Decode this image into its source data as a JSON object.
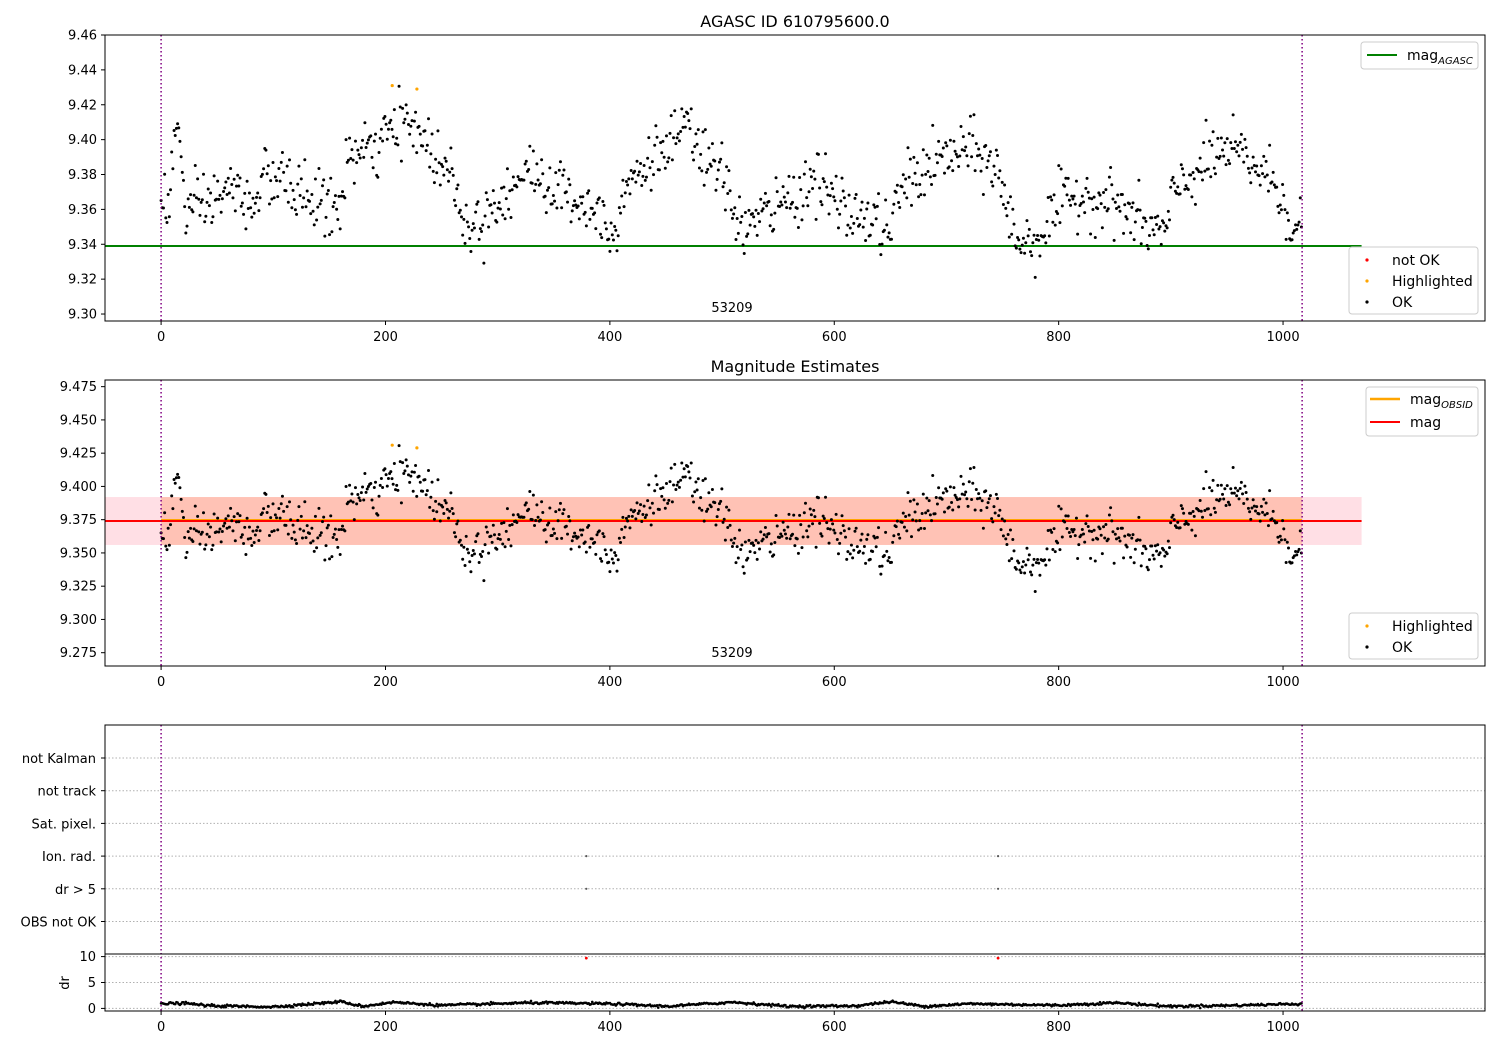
{
  "figure": {
    "panel1_title": "AGASC ID 610795600.0",
    "panel2_title": "Magnitude Estimates",
    "obsid_label": "53209"
  },
  "legends": {
    "panel1_line": {
      "main": "mag",
      "sub": "AGASC"
    },
    "panel1_points": [
      "not OK",
      "Highlighted",
      "OK"
    ],
    "panel2_line1": {
      "main": "mag",
      "sub": "OBSID"
    },
    "panel2_line2": "mag",
    "panel2_points": [
      "Highlighted",
      "OK"
    ]
  },
  "colors": {
    "ok": "#000000",
    "highlighted": "#ffa500",
    "not_ok": "#ff0000",
    "mag_agasc": "#008000",
    "mag_obsid": "#ffa500",
    "mag": "#ff0000",
    "band_pink": "#ffc0cb",
    "band_orange": "#ffa07a",
    "obs_boundary": "#800080",
    "grid": "#b0b0b0"
  },
  "chart_data": [
    {
      "type": "scatter",
      "title": "AGASC ID 610795600.0",
      "xlim": [
        -50,
        1180
      ],
      "ylim": [
        9.296,
        9.46
      ],
      "xticks": [
        0,
        200,
        400,
        600,
        800,
        1000
      ],
      "yticks": [
        9.3,
        9.32,
        9.34,
        9.36,
        9.38,
        9.4,
        9.42,
        9.44,
        9.46
      ],
      "ytick_labels": [
        "9.30",
        "9.32",
        "9.34",
        "9.36",
        "9.38",
        "9.40",
        "9.42",
        "9.44",
        "9.46"
      ],
      "mag_agasc": 9.339,
      "mag_agasc_x_range": [
        -50,
        1070
      ],
      "obs_boundaries": [
        0,
        1017
      ],
      "obsid_text": "53209",
      "obsid_text_x": 508,
      "series_profile": [
        [
          0,
          9.368
        ],
        [
          8,
          9.364
        ],
        [
          12,
          9.405
        ],
        [
          16,
          9.404
        ],
        [
          22,
          9.358
        ],
        [
          40,
          9.362
        ],
        [
          60,
          9.372
        ],
        [
          80,
          9.362
        ],
        [
          90,
          9.378
        ],
        [
          110,
          9.375
        ],
        [
          130,
          9.368
        ],
        [
          160,
          9.358
        ],
        [
          165,
          9.39
        ],
        [
          185,
          9.392
        ],
        [
          200,
          9.4
        ],
        [
          215,
          9.41
        ],
        [
          230,
          9.405
        ],
        [
          250,
          9.385
        ],
        [
          265,
          9.375
        ],
        [
          270,
          9.348
        ],
        [
          290,
          9.358
        ],
        [
          310,
          9.372
        ],
        [
          330,
          9.382
        ],
        [
          350,
          9.372
        ],
        [
          370,
          9.366
        ],
        [
          390,
          9.358
        ],
        [
          405,
          9.346
        ],
        [
          410,
          9.372
        ],
        [
          430,
          9.384
        ],
        [
          450,
          9.396
        ],
        [
          470,
          9.405
        ],
        [
          490,
          9.384
        ],
        [
          500,
          9.378
        ],
        [
          520,
          9.348
        ],
        [
          540,
          9.358
        ],
        [
          560,
          9.366
        ],
        [
          585,
          9.378
        ],
        [
          600,
          9.364
        ],
        [
          620,
          9.356
        ],
        [
          640,
          9.352
        ],
        [
          650,
          9.346
        ],
        [
          660,
          9.374
        ],
        [
          680,
          9.382
        ],
        [
          700,
          9.39
        ],
        [
          720,
          9.394
        ],
        [
          745,
          9.384
        ],
        [
          755,
          9.356
        ],
        [
          765,
          9.342
        ],
        [
          780,
          9.342
        ],
        [
          800,
          9.362
        ],
        [
          820,
          9.368
        ],
        [
          850,
          9.364
        ],
        [
          875,
          9.35
        ],
        [
          895,
          9.346
        ],
        [
          905,
          9.372
        ],
        [
          920,
          9.38
        ],
        [
          945,
          9.393
        ],
        [
          960,
          9.392
        ],
        [
          985,
          9.38
        ],
        [
          1000,
          9.368
        ],
        [
          1010,
          9.346
        ],
        [
          1017,
          9.35
        ]
      ],
      "highlighted_points": [
        [
          206,
          9.431
        ],
        [
          228,
          9.429
        ]
      ],
      "legend_entries": [
        "not OK",
        "Highlighted",
        "OK"
      ]
    },
    {
      "type": "scatter",
      "title": "Magnitude Estimates",
      "xlim": [
        -50,
        1180
      ],
      "ylim": [
        9.265,
        9.48
      ],
      "xticks": [
        0,
        200,
        400,
        600,
        800,
        1000
      ],
      "yticks": [
        9.275,
        9.3,
        9.325,
        9.35,
        9.375,
        9.4,
        9.425,
        9.45,
        9.475
      ],
      "ytick_labels": [
        "9.275",
        "9.300",
        "9.325",
        "9.350",
        "9.375",
        "9.400",
        "9.425",
        "9.450",
        "9.475"
      ],
      "mag": 9.374,
      "mag_band": [
        9.356,
        9.392
      ],
      "obsid_band": [
        9.356,
        9.392
      ],
      "mag_line_x_range": [
        -50,
        1070
      ],
      "obs_boundaries": [
        0,
        1017
      ],
      "obsid_text": "53209",
      "obsid_text_x": 508,
      "highlighted_points": [
        [
          206,
          9.431
        ],
        [
          228,
          9.429
        ]
      ],
      "legend_entries": [
        "Highlighted",
        "OK"
      ]
    },
    {
      "type": "scatter",
      "title": "",
      "xlim": [
        -50,
        1180
      ],
      "xticks": [
        0,
        200,
        400,
        600,
        800,
        1000
      ],
      "flag_categories": [
        "not Kalman",
        "not track",
        "Sat. pixel.",
        "Ion. rad.",
        "dr > 5",
        "OBS not OK"
      ],
      "flag_points": [
        {
          "flag": "Ion. rad.",
          "x": [
            379,
            746
          ]
        },
        {
          "flag": "dr > 5",
          "x": [
            379,
            746
          ]
        }
      ],
      "dr_ylabel": "dr",
      "dr_ylim": [
        -0.5,
        10.5
      ],
      "dr_yticks": [
        0,
        5,
        10
      ],
      "dr_outliers": [
        [
          379,
          9.7
        ],
        [
          746,
          9.7
        ]
      ],
      "dr_profile": [
        [
          0,
          0.9
        ],
        [
          20,
          1.0
        ],
        [
          45,
          0.5
        ],
        [
          100,
          0.3
        ],
        [
          160,
          1.3
        ],
        [
          180,
          0.4
        ],
        [
          206,
          1.2
        ],
        [
          250,
          0.6
        ],
        [
          330,
          1.1
        ],
        [
          400,
          0.9
        ],
        [
          450,
          0.4
        ],
        [
          510,
          1.2
        ],
        [
          560,
          0.4
        ],
        [
          620,
          0.5
        ],
        [
          650,
          1.3
        ],
        [
          680,
          0.4
        ],
        [
          720,
          0.9
        ],
        [
          800,
          0.6
        ],
        [
          850,
          1.1
        ],
        [
          900,
          0.4
        ],
        [
          960,
          0.6
        ],
        [
          1017,
          0.9
        ]
      ],
      "obs_boundaries": [
        0,
        1017
      ]
    }
  ]
}
